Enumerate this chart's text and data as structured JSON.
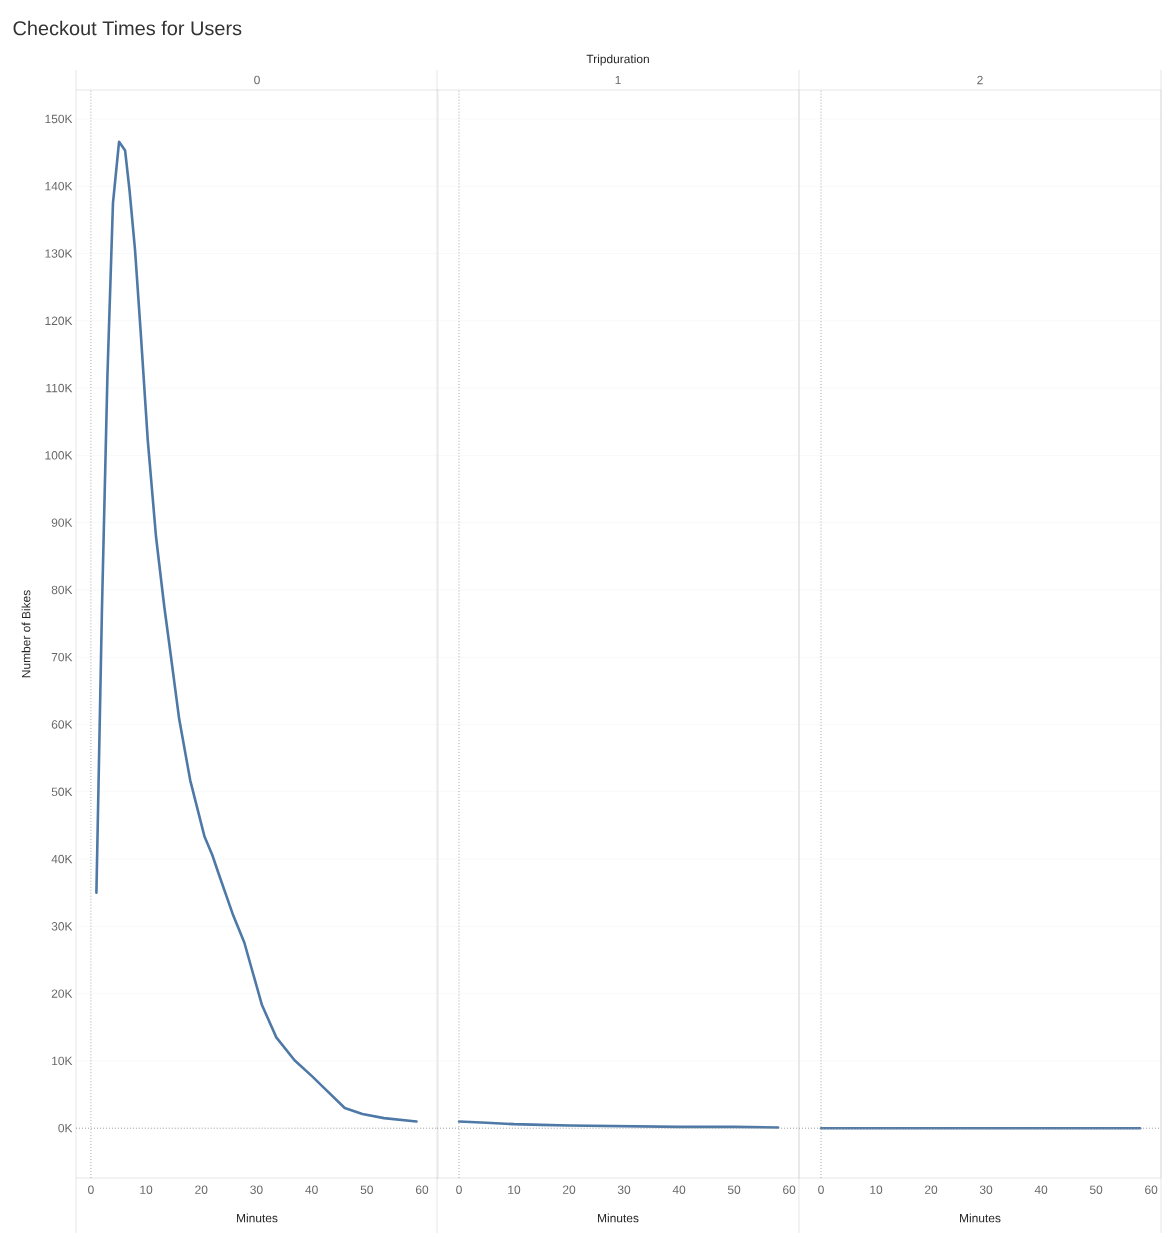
{
  "chart_data": [
    {
      "type": "line",
      "title": "Checkout Times for Users",
      "subtitle": "0",
      "xlabel": "Minutes",
      "ylabel": "Number of Bikes",
      "color": "#4e79a7",
      "grid": "y",
      "x": [
        1,
        2,
        3,
        4,
        5.1,
        6.2,
        7,
        8,
        9,
        10.3,
        11.8,
        13.3,
        14.2,
        16,
        18,
        20.6,
        22,
        23.2,
        25.8,
        27.8,
        31,
        33.6,
        36.9,
        40.1,
        42.1,
        46,
        49.2,
        53.1,
        59
      ],
      "values": [
        35000,
        77000,
        112000,
        137500,
        146600,
        145300,
        139400,
        130500,
        118600,
        102300,
        87900,
        77500,
        72000,
        60800,
        51700,
        43300,
        40600,
        37700,
        31600,
        27600,
        18300,
        13500,
        10100,
        7700,
        6100,
        3000,
        2100,
        1500,
        1000
      ],
      "xlim": [
        -2.7,
        62.9
      ],
      "ylim": [
        -7400,
        154300
      ],
      "xticks": [
        0,
        10,
        20,
        30,
        40,
        50,
        60
      ],
      "yticks": [
        {
          "value": 0,
          "label": "0K"
        },
        {
          "value": 10000,
          "label": "10K"
        },
        {
          "value": 20000,
          "label": "20K"
        },
        {
          "value": 30000,
          "label": "30K"
        },
        {
          "value": 40000,
          "label": "40K"
        },
        {
          "value": 50000,
          "label": "50K"
        },
        {
          "value": 60000,
          "label": "60K"
        },
        {
          "value": 70000,
          "label": "70K"
        },
        {
          "value": 80000,
          "label": "80K"
        },
        {
          "value": 90000,
          "label": "90K"
        },
        {
          "value": 100000,
          "label": "100K"
        },
        {
          "value": 110000,
          "label": "110K"
        },
        {
          "value": 120000,
          "label": "120K"
        },
        {
          "value": 130000,
          "label": "130K"
        },
        {
          "value": 140000,
          "label": "140K"
        },
        {
          "value": 150000,
          "label": "150K"
        }
      ],
      "ref_lines": [
        {
          "axis": "y",
          "value": 0,
          "line_style": "dotted",
          "color": "#999999"
        },
        {
          "axis": "x",
          "value": 0,
          "line_style": "dotted",
          "color": "#aaaaaa"
        }
      ]
    },
    {
      "type": "line",
      "subtitle": "1",
      "xlabel": "Minutes",
      "annotations": [
        "Tripduration"
      ],
      "color": "#4e79a7",
      "grid": "y",
      "tick_labels": "x",
      "x": [
        0,
        5,
        10,
        15,
        20,
        30,
        40,
        50,
        58
      ],
      "values": [
        1000,
        800,
        600,
        500,
        400,
        300,
        200,
        200,
        100
      ],
      "xlim": [
        -4,
        61.8
      ],
      "ylim": [
        -7400,
        154300
      ],
      "xticks": [
        0,
        10,
        20,
        30,
        40,
        50,
        60
      ],
      "yticks": [
        {
          "value": 0,
          "label": null
        },
        {
          "value": 10000,
          "label": null
        },
        {
          "value": 20000,
          "label": null
        },
        {
          "value": 30000,
          "label": null
        },
        {
          "value": 40000,
          "label": null
        },
        {
          "value": 50000,
          "label": null
        },
        {
          "value": 60000,
          "label": null
        },
        {
          "value": 70000,
          "label": null
        },
        {
          "value": 80000,
          "label": null
        },
        {
          "value": 90000,
          "label": null
        },
        {
          "value": 100000,
          "label": null
        },
        {
          "value": 110000,
          "label": null
        },
        {
          "value": 120000,
          "label": null
        },
        {
          "value": 130000,
          "label": null
        },
        {
          "value": 140000,
          "label": null
        },
        {
          "value": 150000,
          "label": null
        }
      ],
      "ref_lines": [
        {
          "axis": "y",
          "value": 0,
          "line_style": "dotted",
          "color": "#999999"
        },
        {
          "axis": "x",
          "value": 0,
          "line_style": "dotted",
          "color": "#aaaaaa"
        }
      ]
    },
    {
      "type": "line",
      "subtitle": "2",
      "xlabel": "Minutes",
      "color": "#4e79a7",
      "grid": "y",
      "tick_labels": "x",
      "x": [
        0,
        10,
        20,
        30,
        40,
        50,
        58
      ],
      "values": [
        0,
        0,
        0,
        0,
        0,
        0,
        0
      ],
      "xlim": [
        -4,
        61.8
      ],
      "ylim": [
        -7400,
        154300
      ],
      "xticks": [
        0,
        10,
        20,
        30,
        40,
        50,
        60
      ],
      "yticks": [
        {
          "value": 0,
          "label": null
        },
        {
          "value": 10000,
          "label": null
        },
        {
          "value": 20000,
          "label": null
        },
        {
          "value": 30000,
          "label": null
        },
        {
          "value": 40000,
          "label": null
        },
        {
          "value": 50000,
          "label": null
        },
        {
          "value": 60000,
          "label": null
        },
        {
          "value": 70000,
          "label": null
        },
        {
          "value": 80000,
          "label": null
        },
        {
          "value": 90000,
          "label": null
        },
        {
          "value": 100000,
          "label": null
        },
        {
          "value": 110000,
          "label": null
        },
        {
          "value": 120000,
          "label": null
        },
        {
          "value": 130000,
          "label": null
        },
        {
          "value": 140000,
          "label": null
        },
        {
          "value": 150000,
          "label": null
        }
      ],
      "ref_lines": [
        {
          "axis": "y",
          "value": 0,
          "line_style": "dotted",
          "color": "#999999"
        },
        {
          "axis": "x",
          "value": 0,
          "line_style": "dotted",
          "color": "#aaaaaa"
        }
      ]
    }
  ]
}
